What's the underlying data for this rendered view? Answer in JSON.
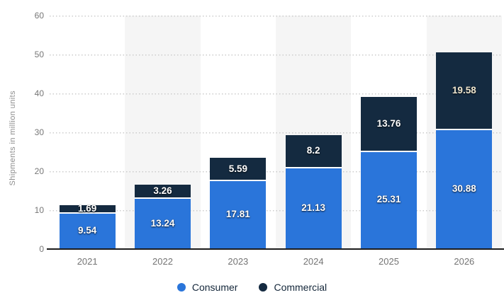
{
  "chart_data": {
    "type": "bar",
    "stacked": true,
    "categories": [
      "2021",
      "2022",
      "2023",
      "2024",
      "2025",
      "2026"
    ],
    "series": [
      {
        "name": "Consumer",
        "color": "#2a75da",
        "values": [
          9.54,
          13.24,
          17.81,
          21.13,
          25.31,
          30.88
        ],
        "label_colors": [
          null,
          null,
          null,
          null,
          null,
          null
        ]
      },
      {
        "name": "Commercial",
        "color": "#142a40",
        "values": [
          1.69,
          3.26,
          5.59,
          8.2,
          13.76,
          19.58
        ],
        "label_colors": [
          null,
          null,
          null,
          null,
          null,
          "#efe6cf"
        ]
      }
    ],
    "ylabel": "Shipments in million units",
    "ylim": [
      0,
      60
    ],
    "yticks": [
      0,
      10,
      20,
      30,
      40,
      50,
      60
    ],
    "grid": "horizontal-dotted",
    "gridline_color": "#cccccc",
    "band_colors": [
      "#ffffff",
      "#f5f5f5"
    ],
    "value_label_color": "#ffffff",
    "legend_position": "bottom"
  }
}
